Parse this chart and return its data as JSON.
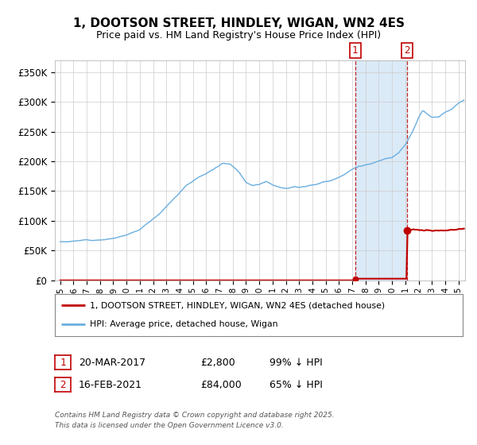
{
  "title": "1, DOOTSON STREET, HINDLEY, WIGAN, WN2 4ES",
  "subtitle": "Price paid vs. HM Land Registry's House Price Index (HPI)",
  "hpi_label": "HPI: Average price, detached house, Wigan",
  "property_label": "1, DOOTSON STREET, HINDLEY, WIGAN, WN2 4ES (detached house)",
  "hpi_color": "#6aaee0",
  "property_color": "#c00000",
  "sale1_date": 2017.22,
  "sale1_price": 2800,
  "sale2_date": 2021.12,
  "sale2_price": 84000,
  "footer": "Contains HM Land Registry data © Crown copyright and database right 2025.\nThis data is licensed under the Open Government Licence v3.0.",
  "background_color": "#ffffff",
  "plot_bg_color": "#ffffff",
  "highlight_bg": "#dbeaf7",
  "ylim": [
    0,
    370000
  ],
  "yticks": [
    0,
    50000,
    100000,
    150000,
    200000,
    250000,
    300000,
    350000
  ],
  "xlim_start": 1994.6,
  "xlim_end": 2025.5
}
